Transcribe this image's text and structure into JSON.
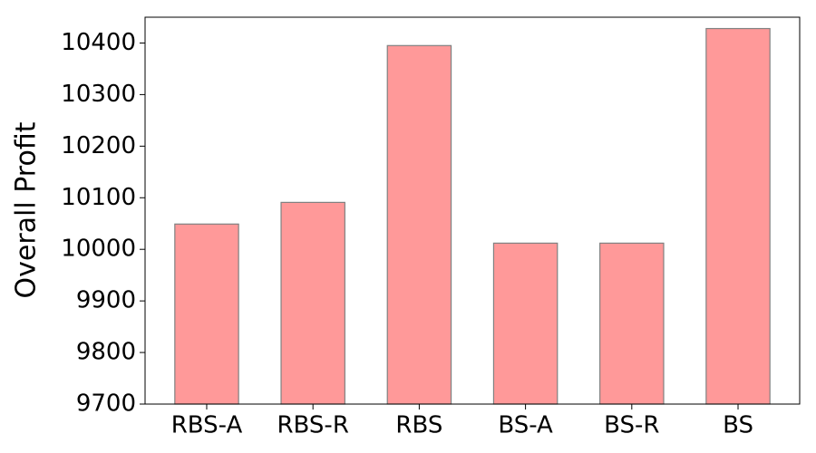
{
  "chart_data": {
    "type": "bar",
    "y_label": "Overall Profit",
    "categories": [
      "RBS-A",
      "RBS-R",
      "RBS",
      "BS-A",
      "BS-R",
      "BS"
    ],
    "values": [
      10049,
      10091,
      10395,
      10012,
      10012,
      10428
    ],
    "color": "#ff9999",
    "edge_color": "#808080",
    "ylim": [
      9700,
      10450
    ],
    "yticks": [
      9700,
      9800,
      9900,
      10000,
      10100,
      10200,
      10300,
      10400
    ],
    "grid": false
  }
}
